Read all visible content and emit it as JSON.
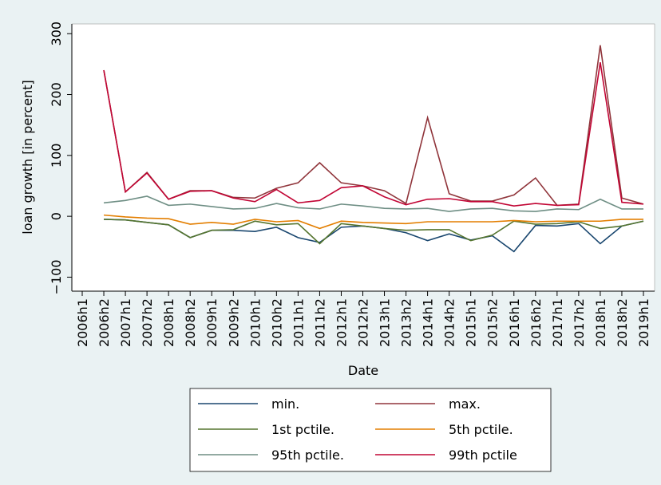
{
  "chart_data": {
    "type": "line",
    "x_label": "Date",
    "y_label": "loan growth [in percent]",
    "categories": [
      "2006h1",
      "2006h2",
      "2007h1",
      "2007h2",
      "2008h1",
      "2008h2",
      "2009h1",
      "2009h2",
      "2010h1",
      "2010h2",
      "2011h1",
      "2011h2",
      "2012h1",
      "2012h2",
      "2013h1",
      "2013h2",
      "2014h1",
      "2014h2",
      "2015h1",
      "2015h2",
      "2016h1",
      "2016h2",
      "2017h1",
      "2017h2",
      "2018h1",
      "2018h2",
      "2019h1"
    ],
    "series": [
      {
        "name": "min.",
        "color": "#1a476f",
        "values": [
          null,
          -5,
          -6,
          -10,
          -14,
          -35,
          -23,
          -23,
          -25,
          -18,
          -35,
          -43,
          -18,
          -16,
          -20,
          -27,
          -40,
          -29,
          -39,
          -32,
          -58,
          -15,
          -16,
          -12,
          -45,
          -16,
          -8
        ]
      },
      {
        "name": "max.",
        "color": "#90353b",
        "values": [
          null,
          240,
          40,
          72,
          28,
          42,
          42,
          31,
          30,
          46,
          55,
          88,
          55,
          50,
          42,
          21,
          162,
          37,
          25,
          25,
          35,
          63,
          18,
          20,
          281,
          30,
          20
        ]
      },
      {
        "name": "1st pctile.",
        "color": "#55752f",
        "values": [
          null,
          -5,
          -6,
          -10,
          -14,
          -35,
          -23,
          -22,
          -8,
          -14,
          -12,
          -45,
          -12,
          -16,
          -20,
          -23,
          -22,
          -22,
          -40,
          -31,
          -8,
          -13,
          -12,
          -9,
          -20,
          -16,
          -8
        ]
      },
      {
        "name": "5th pctile.",
        "color": "#e37e00",
        "values": [
          null,
          2,
          -1,
          -3,
          -4,
          -13,
          -10,
          -13,
          -5,
          -9,
          -7,
          -20,
          -8,
          -10,
          -11,
          -12,
          -9,
          -9,
          -9,
          -9,
          -7,
          -9,
          -8,
          -8,
          -8,
          -5,
          -5
        ]
      },
      {
        "name": "95th pctile.",
        "color": "#6e8e84",
        "values": [
          null,
          22,
          26,
          33,
          18,
          20,
          16,
          12,
          13,
          21,
          14,
          12,
          20,
          17,
          13,
          12,
          13,
          8,
          12,
          13,
          9,
          8,
          12,
          11,
          28,
          12,
          12
        ]
      },
      {
        "name": "99th pctile",
        "color": "#c10534",
        "values": [
          null,
          240,
          40,
          71,
          28,
          41,
          42,
          30,
          24,
          44,
          22,
          26,
          47,
          50,
          32,
          19,
          28,
          29,
          24,
          24,
          17,
          21,
          18,
          19,
          253,
          23,
          20
        ]
      }
    ],
    "ylim": [
      -123,
      316
    ],
    "yticks": [
      {
        "value": -100,
        "label": "−100"
      },
      0,
      100,
      200,
      300
    ]
  }
}
